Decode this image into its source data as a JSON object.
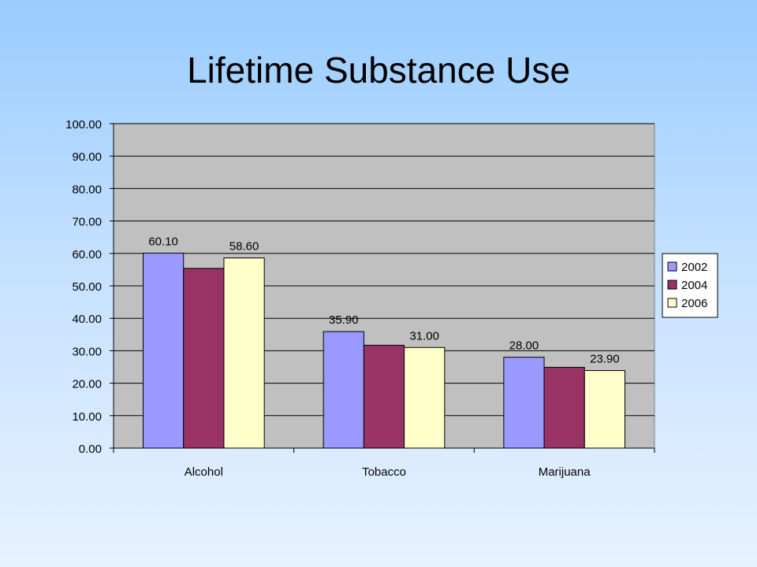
{
  "slide": {
    "title": "Lifetime Substance Use"
  },
  "chart_data": {
    "type": "bar",
    "title": "",
    "xlabel": "",
    "ylabel": "",
    "categories": [
      "Alcohol",
      "Tobacco",
      "Marijuana"
    ],
    "series": [
      {
        "name": "2002",
        "values": [
          60.1,
          35.9,
          28.0
        ],
        "color": "#9999ff",
        "labels": [
          "60.10",
          "35.90",
          "28.00"
        ]
      },
      {
        "name": "2004",
        "values": [
          55.4,
          31.7,
          24.9
        ],
        "color": "#993366",
        "labels": [
          "",
          "",
          ""
        ]
      },
      {
        "name": "2006",
        "values": [
          58.6,
          31.0,
          23.9
        ],
        "color": "#ffffcc",
        "labels": [
          "58.60",
          "31.00",
          "23.90"
        ]
      }
    ],
    "ylim": [
      0,
      100
    ],
    "yticks": [
      "0.00",
      "10.00",
      "20.00",
      "30.00",
      "40.00",
      "50.00",
      "60.00",
      "70.00",
      "80.00",
      "90.00",
      "100.00"
    ],
    "grid": true,
    "plot_background": "#c0c0c0",
    "legend_position": "right"
  }
}
